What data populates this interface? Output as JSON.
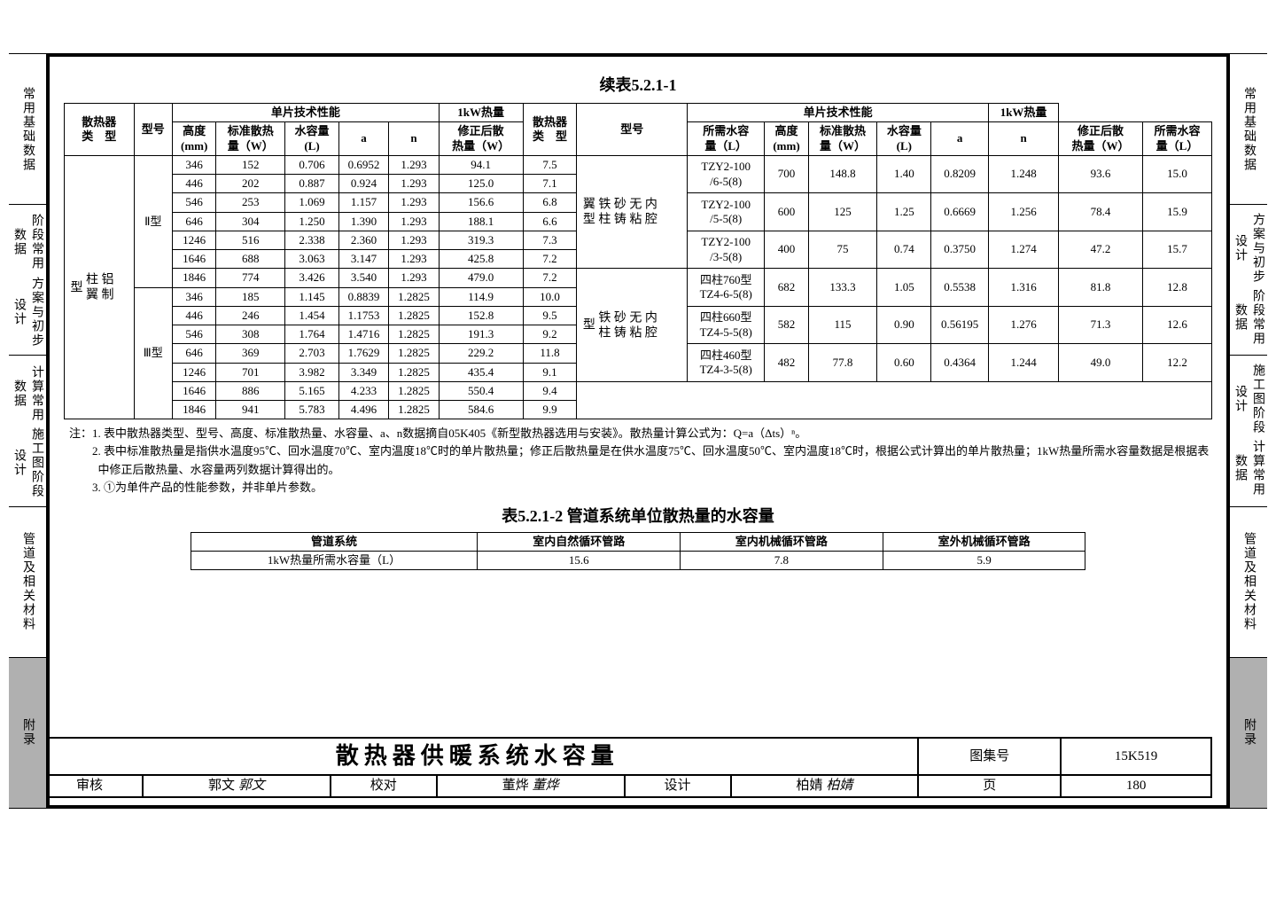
{
  "sideTabs": {
    "t1": "常用基础数据",
    "t2a": "阶段常用数据",
    "t2b": "方案与初步设计",
    "t3a": "计算常用数据",
    "t3b": "施工图阶段设计",
    "t4": "管道及相关材料",
    "t5": "附录"
  },
  "table1": {
    "title": "续表5.2.1-1",
    "headers": {
      "cat": "散热器\n类　型",
      "model": "型号",
      "perfGroup": "单片技术性能",
      "kwGroup": "1kW热量",
      "h": "高度\n(mm)",
      "q": "标准散热\n量（W）",
      "vol": "水容量\n(L)",
      "a": "a",
      "n": "n",
      "qc": "修正后散\n热量（W）",
      "vreq": "所需水容\n量（L）"
    },
    "leftCat": "铝制\n柱翼\n型",
    "leftRows": [
      {
        "model": "Ⅱ型",
        "h": "346",
        "q": "152",
        "vol": "0.706",
        "a": "0.6952",
        "n": "1.293",
        "qc": "94.1",
        "vreq": "7.5"
      },
      {
        "h": "446",
        "q": "202",
        "vol": "0.887",
        "a": "0.924",
        "n": "1.293",
        "qc": "125.0",
        "vreq": "7.1"
      },
      {
        "h": "546",
        "q": "253",
        "vol": "1.069",
        "a": "1.157",
        "n": "1.293",
        "qc": "156.6",
        "vreq": "6.8"
      },
      {
        "h": "646",
        "q": "304",
        "vol": "1.250",
        "a": "1.390",
        "n": "1.293",
        "qc": "188.1",
        "vreq": "6.6"
      },
      {
        "h": "1246",
        "q": "516",
        "vol": "2.338",
        "a": "2.360",
        "n": "1.293",
        "qc": "319.3",
        "vreq": "7.3"
      },
      {
        "h": "1646",
        "q": "688",
        "vol": "3.063",
        "a": "3.147",
        "n": "1.293",
        "qc": "425.8",
        "vreq": "7.2"
      },
      {
        "h": "1846",
        "q": "774",
        "vol": "3.426",
        "a": "3.540",
        "n": "1.293",
        "qc": "479.0",
        "vreq": "7.2"
      },
      {
        "model": "Ⅲ型",
        "h": "346",
        "q": "185",
        "vol": "1.145",
        "a": "0.8839",
        "n": "1.2825",
        "qc": "114.9",
        "vreq": "10.0"
      },
      {
        "h": "446",
        "q": "246",
        "vol": "1.454",
        "a": "1.1753",
        "n": "1.2825",
        "qc": "152.8",
        "vreq": "9.5"
      },
      {
        "h": "546",
        "q": "308",
        "vol": "1.764",
        "a": "1.4716",
        "n": "1.2825",
        "qc": "191.3",
        "vreq": "9.2"
      },
      {
        "h": "646",
        "q": "369",
        "vol": "2.703",
        "a": "1.7629",
        "n": "1.2825",
        "qc": "229.2",
        "vreq": "11.8"
      },
      {
        "h": "1246",
        "q": "701",
        "vol": "3.982",
        "a": "3.349",
        "n": "1.2825",
        "qc": "435.4",
        "vreq": "9.1"
      },
      {
        "h": "1646",
        "q": "886",
        "vol": "5.165",
        "a": "4.233",
        "n": "1.2825",
        "qc": "550.4",
        "vreq": "9.4"
      },
      {
        "h": "1846",
        "q": "941",
        "vol": "5.783",
        "a": "4.496",
        "n": "1.2825",
        "qc": "584.6",
        "vreq": "9.9"
      }
    ],
    "rightCat1": "内腔\n无粘\n砂铸\n铁柱\n翼型",
    "rightCat2": "内腔\n无粘\n砂铸\n铁柱\n型",
    "rightRows": [
      {
        "model": "TZY2-100\n/6-5(8)",
        "h": "700",
        "q": "148.8",
        "vol": "1.40",
        "a": "0.8209",
        "n": "1.248",
        "qc": "93.6",
        "vreq": "15.0"
      },
      {
        "model": "TZY2-100\n/5-5(8)",
        "h": "600",
        "q": "125",
        "vol": "1.25",
        "a": "0.6669",
        "n": "1.256",
        "qc": "78.4",
        "vreq": "15.9"
      },
      {
        "model": "TZY2-100\n/3-5(8)",
        "h": "400",
        "q": "75",
        "vol": "0.74",
        "a": "0.3750",
        "n": "1.274",
        "qc": "47.2",
        "vreq": "15.7"
      },
      {
        "model": "四柱760型\nTZ4-6-5(8)",
        "h": "682",
        "q": "133.3",
        "vol": "1.05",
        "a": "0.5538",
        "n": "1.316",
        "qc": "81.8",
        "vreq": "12.8"
      },
      {
        "model": "四柱660型\nTZ4-5-5(8)",
        "h": "582",
        "q": "115",
        "vol": "0.90",
        "a": "0.56195",
        "n": "1.276",
        "qc": "71.3",
        "vreq": "12.6"
      },
      {
        "model": "四柱460型\nTZ4-3-5(8)",
        "h": "482",
        "q": "77.8",
        "vol": "0.60",
        "a": "0.4364",
        "n": "1.244",
        "qc": "49.0",
        "vreq": "12.2"
      }
    ]
  },
  "notes": {
    "n1": "注：1. 表中散热器类型、型号、高度、标准散热量、水容量、a、n数据摘自05K405《新型散热器选用与安装》。散热量计算公式为：Q=a（Δts）ⁿ。",
    "n2": "　　2. 表中标准散热量是指供水温度95℃、回水温度70℃、室内温度18℃时的单片散热量；修正后散热量是在供水温度75℃、回水温度50℃、室内温度18℃时，根据公式计算出的单片散热量；1kW热量所需水容量数据是根据表中修正后散热量、水容量两列数据计算得出的。",
    "n3": "　　3. ①为单件产品的性能参数，并非单片参数。"
  },
  "table2": {
    "title": "表5.2.1-2 管道系统单位散热量的水容量",
    "headers": [
      "管道系统",
      "室内自然循环管路",
      "室内机械循环管路",
      "室外机械循环管路"
    ],
    "rowLabel": "1kW热量所需水容量（L）",
    "values": [
      "15.6",
      "7.8",
      "5.9"
    ]
  },
  "titleBlock": {
    "main": "散热器供暖系统水容量",
    "atlasLabel": "图集号",
    "atlasNo": "15K519",
    "reviewLabel": "审核",
    "reviewName": "郭文",
    "reviewSig": "郭文",
    "checkLabel": "校对",
    "checkName": "董烨",
    "checkSig": "董烨",
    "designLabel": "设计",
    "designName": "柏婧",
    "designSig": "柏婧",
    "pageLabel": "页",
    "pageNo": "180"
  }
}
